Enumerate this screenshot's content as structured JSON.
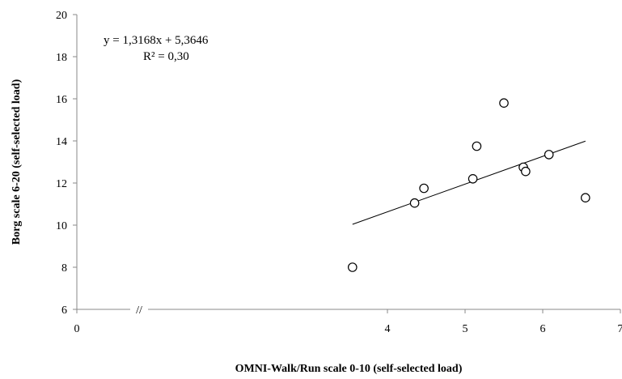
{
  "chart_data": {
    "type": "scatter",
    "xlabel": "OMNI-Walk/Run scale 0-10 (self-selected load)",
    "ylabel": "Borg scale 6-20 (self-selected load)",
    "xlim": [
      0,
      7
    ],
    "ylim": [
      6,
      20
    ],
    "x_tick_labels": [
      "0",
      "4",
      "5",
      "6",
      "7"
    ],
    "y_ticks": [
      6,
      8,
      10,
      12,
      14,
      16,
      18,
      20
    ],
    "axis_break_label": "//",
    "points": [
      {
        "x": 3.55,
        "y": 8.0
      },
      {
        "x": 4.35,
        "y": 11.05
      },
      {
        "x": 4.47,
        "y": 11.75
      },
      {
        "x": 5.1,
        "y": 12.2
      },
      {
        "x": 5.15,
        "y": 13.75
      },
      {
        "x": 5.5,
        "y": 15.8
      },
      {
        "x": 5.75,
        "y": 12.75
      },
      {
        "x": 5.78,
        "y": 12.55
      },
      {
        "x": 6.08,
        "y": 13.35
      },
      {
        "x": 6.55,
        "y": 11.3
      }
    ],
    "trendline": {
      "x_range": [
        3.55,
        6.55
      ],
      "equation_label": "y = 1,3168x + 5,3646",
      "r2_label": "R² = 0,30"
    }
  }
}
